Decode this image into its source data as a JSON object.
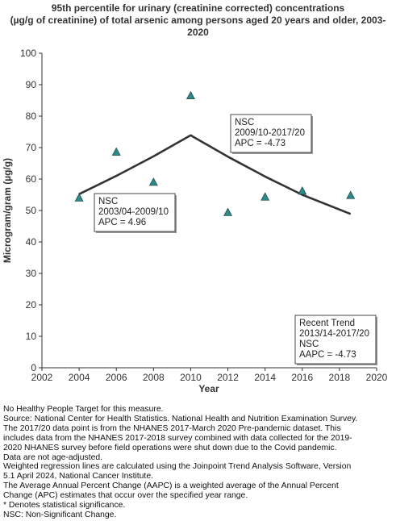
{
  "title_lines": [
    "95th percentile for urinary (creatinine corrected) concentrations",
    "(µg/g of creatinine) of total arsenic among persons aged 20 years and older, 2003-",
    "2020"
  ],
  "chart_data": {
    "type": "scatter",
    "title": "95th percentile for urinary (creatinine corrected) concentrations (µg/g of creatinine) of total arsenic among persons aged 20 years and older, 2003-2020",
    "xlabel": "Year",
    "ylabel": "Microgram/gram (µg/g)",
    "xlim": [
      2002,
      2020
    ],
    "ylim": [
      0,
      100
    ],
    "xticks": [
      2002,
      2004,
      2006,
      2008,
      2010,
      2012,
      2014,
      2016,
      2018,
      2020
    ],
    "yticks": [
      0,
      10,
      20,
      30,
      40,
      50,
      60,
      70,
      80,
      90,
      100
    ],
    "grid": false,
    "series": [
      {
        "marker": "triangle",
        "color": "#2e8b8b",
        "points": [
          {
            "x": 2004,
            "y": 54.0
          },
          {
            "x": 2006,
            "y": 68.6
          },
          {
            "x": 2008,
            "y": 59.0
          },
          {
            "x": 2010,
            "y": 86.5
          },
          {
            "x": 2012,
            "y": 49.4
          },
          {
            "x": 2014,
            "y": 54.3
          },
          {
            "x": 2016,
            "y": 56.2
          },
          {
            "x": 2018.6,
            "y": 54.8
          }
        ]
      }
    ],
    "trend_line": {
      "color": "#333333",
      "points": [
        {
          "x": 2004,
          "y": 55.2
        },
        {
          "x": 2006,
          "y": 61.0
        },
        {
          "x": 2008,
          "y": 67.2
        },
        {
          "x": 2010,
          "y": 73.9
        },
        {
          "x": 2012,
          "y": 67.1
        },
        {
          "x": 2014,
          "y": 60.8
        },
        {
          "x": 2016,
          "y": 55.0
        },
        {
          "x": 2018.6,
          "y": 48.9
        }
      ]
    },
    "annotations": [
      {
        "lines": [
          "NSC",
          "2003/04-2009/10",
          "APC =  4.96"
        ]
      },
      {
        "lines": [
          "NSC",
          "2009/10-2017/20",
          "APC = -4.73"
        ]
      },
      {
        "lines": [
          "Recent Trend",
          "2013/14-2017/20",
          "NSC",
          "AAPC = -4.73"
        ]
      }
    ]
  },
  "notes": [
    "No Healthy People Target for this measure.",
    "Source: National Center for Health Statistics. National Health and Nutrition Examination Survey.",
    "The 2017/20 data point is from the NHANES 2017-March 2020 Pre-pandemic dataset. This",
    "includes data from the NHANES 2017-2018 survey combined with data collected for the 2019-",
    "2020 NHANES survey before field operations were shut down due to the Covid pandemic.",
    "Data are not age-adjusted.",
    "Weighted regression lines are calculated using the Joinpoint Trend Analysis Software, Version",
    "5.1 April 2024, National Cancer Institute.",
    "The Average Annual Percent Change (AAPC) is a weighted average of the Annual Percent",
    "Change (APC) estimates that occur over the specified year range.",
    "* Denotes statistical significance.",
    "NSC: Non-Significant Change."
  ]
}
